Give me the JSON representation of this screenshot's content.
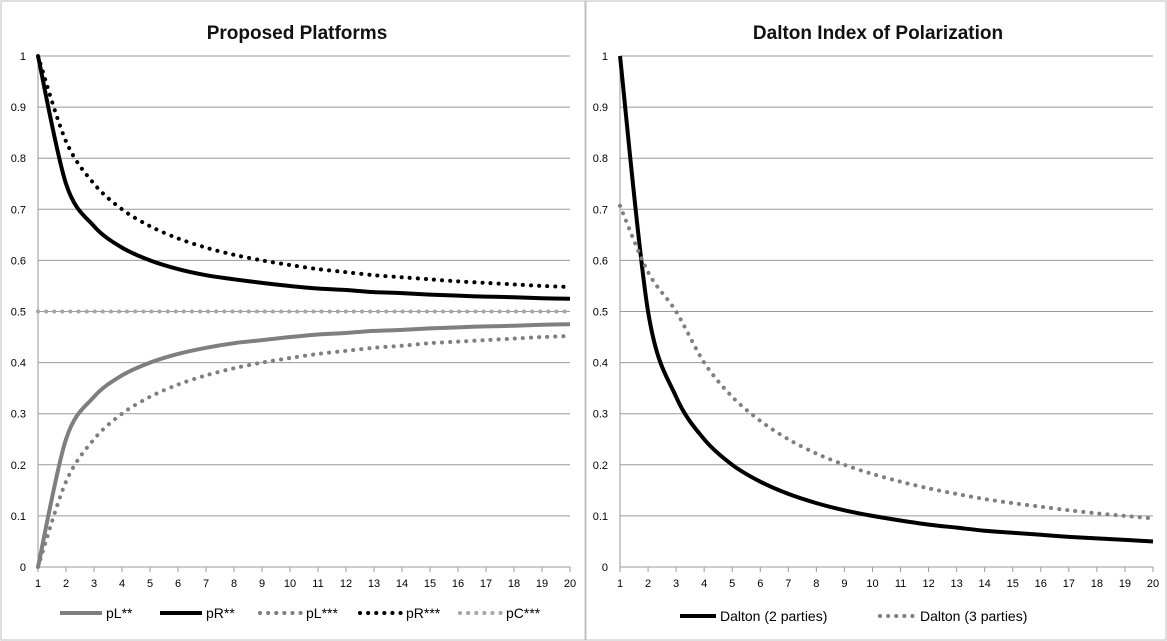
{
  "chart_data": [
    {
      "type": "line",
      "title": "Proposed Platforms",
      "xlabel": "",
      "ylabel": "",
      "categories": [
        1,
        2,
        3,
        4,
        5,
        6,
        7,
        8,
        9,
        10,
        11,
        12,
        13,
        14,
        15,
        16,
        17,
        18,
        19,
        20
      ],
      "ylim": [
        0,
        1
      ],
      "yticks": [
        0,
        0.1,
        0.2,
        0.3,
        0.4,
        0.5,
        0.6,
        0.7,
        0.8,
        0.9,
        1
      ],
      "grid": "horizontal",
      "legend": "bottom",
      "series": [
        {
          "name": "pL**",
          "color": "#7f7f7f",
          "style": "solid",
          "values": [
            0,
            0.25,
            0.333,
            0.375,
            0.4,
            0.417,
            0.429,
            0.438,
            0.444,
            0.45,
            0.455,
            0.458,
            0.462,
            0.464,
            0.467,
            0.469,
            0.471,
            0.472,
            0.474,
            0.475
          ]
        },
        {
          "name": "pR**",
          "color": "#000000",
          "style": "solid",
          "values": [
            1,
            0.75,
            0.667,
            0.625,
            0.6,
            0.583,
            0.571,
            0.563,
            0.556,
            0.55,
            0.545,
            0.542,
            0.538,
            0.536,
            0.533,
            0.531,
            0.529,
            0.528,
            0.526,
            0.525
          ]
        },
        {
          "name": "pL***",
          "color": "#7f7f7f",
          "style": "dotted",
          "values": [
            0,
            0.167,
            0.25,
            0.3,
            0.333,
            0.357,
            0.375,
            0.389,
            0.4,
            0.409,
            0.417,
            0.423,
            0.429,
            0.433,
            0.438,
            0.441,
            0.444,
            0.447,
            0.45,
            0.452
          ]
        },
        {
          "name": "pR***",
          "color": "#000000",
          "style": "dotted",
          "values": [
            1,
            0.833,
            0.75,
            0.7,
            0.667,
            0.643,
            0.625,
            0.611,
            0.6,
            0.591,
            0.583,
            0.577,
            0.571,
            0.567,
            0.563,
            0.559,
            0.556,
            0.553,
            0.55,
            0.548
          ]
        },
        {
          "name": "pC***",
          "color": "#a6a6a6",
          "style": "dotted",
          "values": [
            0.5,
            0.5,
            0.5,
            0.5,
            0.5,
            0.5,
            0.5,
            0.5,
            0.5,
            0.5,
            0.5,
            0.5,
            0.5,
            0.5,
            0.5,
            0.5,
            0.5,
            0.5,
            0.5,
            0.5
          ]
        }
      ]
    },
    {
      "type": "line",
      "title": "Dalton Index of Polarization",
      "xlabel": "",
      "ylabel": "",
      "categories": [
        1,
        2,
        3,
        4,
        5,
        6,
        7,
        8,
        9,
        10,
        11,
        12,
        13,
        14,
        15,
        16,
        17,
        18,
        19,
        20
      ],
      "ylim": [
        0,
        1
      ],
      "yticks": [
        0,
        0.1,
        0.2,
        0.3,
        0.4,
        0.5,
        0.6,
        0.7,
        0.8,
        0.9,
        1
      ],
      "grid": "horizontal",
      "legend": "bottom",
      "series": [
        {
          "name": "Dalton (2 parties)",
          "color": "#000000",
          "style": "solid",
          "values": [
            1,
            0.5,
            0.333,
            0.25,
            0.2,
            0.167,
            0.143,
            0.125,
            0.111,
            0.1,
            0.091,
            0.083,
            0.077,
            0.071,
            0.067,
            0.063,
            0.059,
            0.056,
            0.053,
            0.05
          ]
        },
        {
          "name": "Dalton (3 parties)",
          "color": "#7f7f7f",
          "style": "dotted",
          "values": [
            0.707,
            0.577,
            0.5,
            0.4,
            0.333,
            0.286,
            0.25,
            0.222,
            0.2,
            0.182,
            0.167,
            0.154,
            0.143,
            0.133,
            0.125,
            0.118,
            0.111,
            0.105,
            0.1,
            0.095
          ]
        }
      ]
    }
  ]
}
